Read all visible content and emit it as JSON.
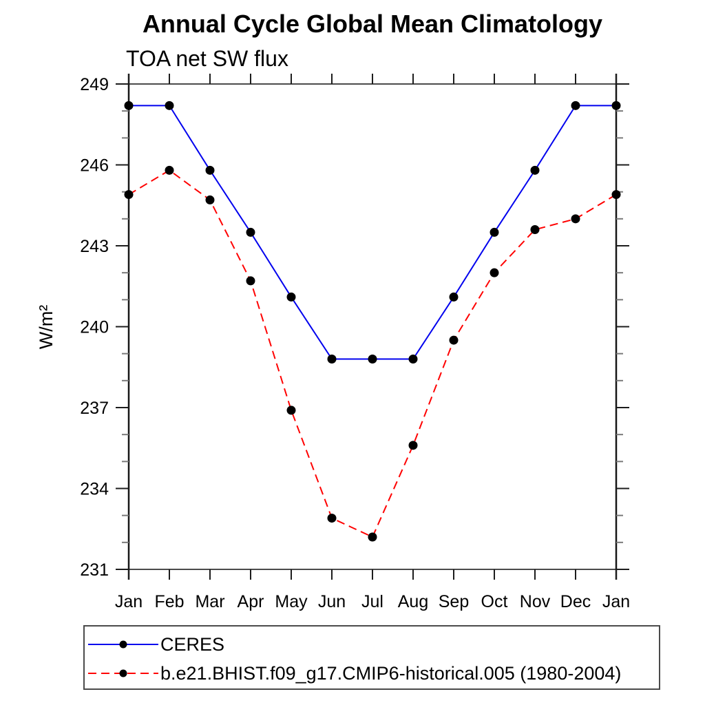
{
  "chart_data": {
    "type": "line",
    "title": "Annual Cycle Global Mean Climatology",
    "subtitle": "TOA net SW flux",
    "ylabel": "W/m²",
    "xlabel": "",
    "categories": [
      "Jan",
      "Feb",
      "Mar",
      "Apr",
      "May",
      "Jun",
      "Jul",
      "Aug",
      "Sep",
      "Oct",
      "Nov",
      "Dec",
      "Jan"
    ],
    "y_axis": {
      "min": 231,
      "max": 249,
      "major_step": 3,
      "minor_step": 1
    },
    "y_ticks": [
      231,
      234,
      237,
      240,
      243,
      246,
      249
    ],
    "grid": false,
    "legend_position": "bottom-left",
    "series": [
      {
        "name": "CERES",
        "color": "#0000ee",
        "style": "solid",
        "marker": "circle",
        "marker_color": "#000000",
        "values": [
          248.2,
          248.2,
          245.8,
          243.5,
          241.1,
          238.8,
          238.8,
          238.8,
          241.1,
          243.5,
          245.8,
          248.2,
          248.2
        ]
      },
      {
        "name": "b.e21.BHIST.f09_g17.CMIP6-historical.005 (1980-2004)",
        "color": "#ff0000",
        "style": "dashed",
        "marker": "circle",
        "marker_color": "#000000",
        "values": [
          244.9,
          245.8,
          244.7,
          241.7,
          236.9,
          232.9,
          232.2,
          235.6,
          239.5,
          242.0,
          243.6,
          244.0,
          244.9
        ]
      }
    ]
  }
}
